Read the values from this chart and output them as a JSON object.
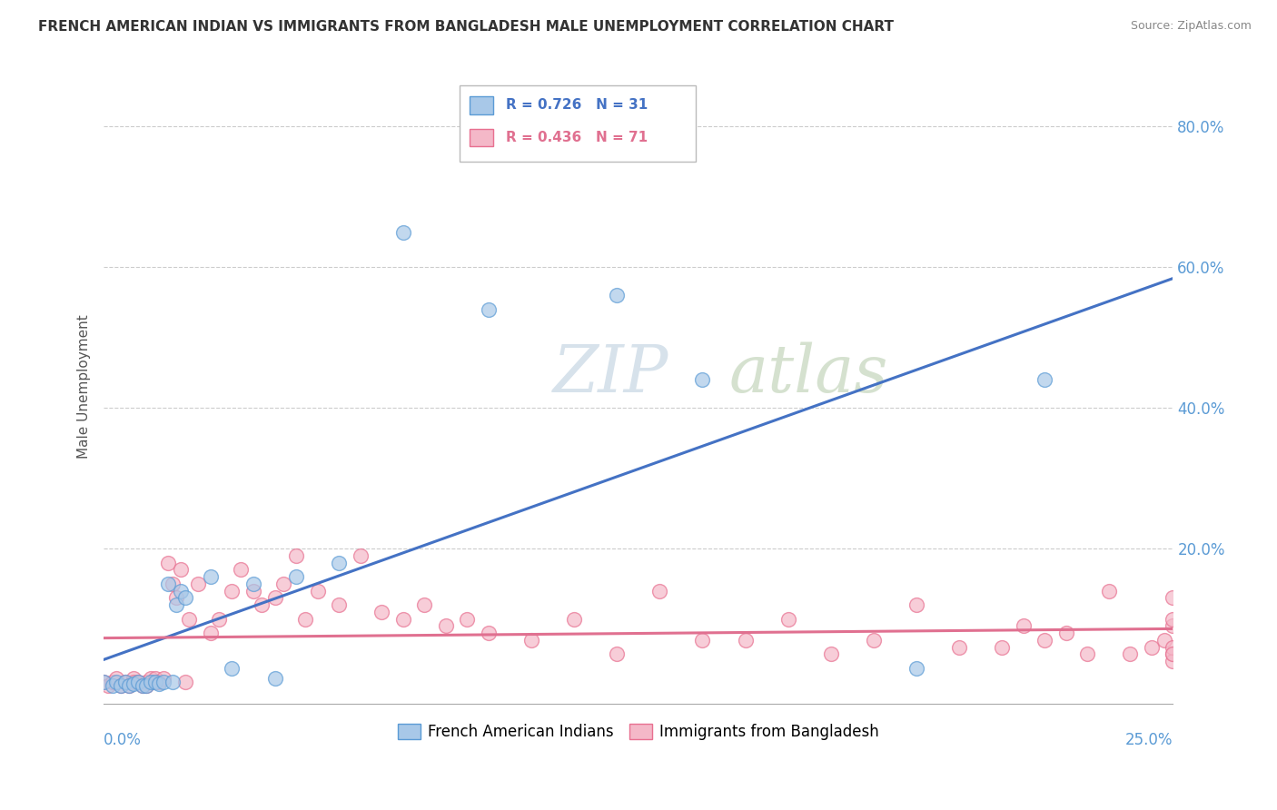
{
  "title": "FRENCH AMERICAN INDIAN VS IMMIGRANTS FROM BANGLADESH MALE UNEMPLOYMENT CORRELATION CHART",
  "source": "Source: ZipAtlas.com",
  "ylabel": "Male Unemployment",
  "y_ticks": [
    0.0,
    0.2,
    0.4,
    0.6,
    0.8
  ],
  "y_tick_labels": [
    "",
    "20.0%",
    "40.0%",
    "60.0%",
    "80.0%"
  ],
  "x_lim": [
    0.0,
    0.25
  ],
  "y_lim": [
    -0.02,
    0.88
  ],
  "blue_color": "#a8c8e8",
  "pink_color": "#f4b8c8",
  "blue_edge_color": "#5b9bd5",
  "pink_edge_color": "#e87090",
  "blue_line_color": "#4472c4",
  "pink_line_color": "#e07090",
  "blue_R": 0.726,
  "blue_N": 31,
  "pink_R": 0.436,
  "pink_N": 71,
  "blue_scatter_x": [
    0.0,
    0.002,
    0.003,
    0.004,
    0.005,
    0.006,
    0.007,
    0.008,
    0.009,
    0.01,
    0.011,
    0.012,
    0.013,
    0.014,
    0.015,
    0.016,
    0.017,
    0.018,
    0.019,
    0.025,
    0.03,
    0.035,
    0.04,
    0.045,
    0.055,
    0.07,
    0.09,
    0.12,
    0.14,
    0.19,
    0.22
  ],
  "blue_scatter_y": [
    0.01,
    0.005,
    0.01,
    0.005,
    0.01,
    0.005,
    0.008,
    0.01,
    0.005,
    0.005,
    0.01,
    0.01,
    0.008,
    0.01,
    0.15,
    0.01,
    0.12,
    0.14,
    0.13,
    0.16,
    0.03,
    0.15,
    0.015,
    0.16,
    0.18,
    0.65,
    0.54,
    0.56,
    0.44,
    0.03,
    0.44
  ],
  "pink_scatter_x": [
    0.0,
    0.001,
    0.002,
    0.003,
    0.004,
    0.005,
    0.006,
    0.007,
    0.007,
    0.008,
    0.009,
    0.01,
    0.01,
    0.011,
    0.012,
    0.012,
    0.013,
    0.014,
    0.015,
    0.016,
    0.017,
    0.018,
    0.019,
    0.02,
    0.022,
    0.025,
    0.027,
    0.03,
    0.032,
    0.035,
    0.037,
    0.04,
    0.042,
    0.045,
    0.047,
    0.05,
    0.055,
    0.06,
    0.065,
    0.07,
    0.075,
    0.08,
    0.085,
    0.09,
    0.1,
    0.11,
    0.12,
    0.13,
    0.14,
    0.15,
    0.16,
    0.17,
    0.18,
    0.19,
    0.2,
    0.21,
    0.215,
    0.22,
    0.225,
    0.23,
    0.235,
    0.24,
    0.245,
    0.248,
    0.25,
    0.25,
    0.25,
    0.25,
    0.25,
    0.25,
    0.25
  ],
  "pink_scatter_y": [
    0.01,
    0.005,
    0.01,
    0.015,
    0.005,
    0.01,
    0.005,
    0.015,
    0.01,
    0.01,
    0.005,
    0.01,
    0.005,
    0.015,
    0.01,
    0.015,
    0.01,
    0.015,
    0.18,
    0.15,
    0.13,
    0.17,
    0.01,
    0.1,
    0.15,
    0.08,
    0.1,
    0.14,
    0.17,
    0.14,
    0.12,
    0.13,
    0.15,
    0.19,
    0.1,
    0.14,
    0.12,
    0.19,
    0.11,
    0.1,
    0.12,
    0.09,
    0.1,
    0.08,
    0.07,
    0.1,
    0.05,
    0.14,
    0.07,
    0.07,
    0.1,
    0.05,
    0.07,
    0.12,
    0.06,
    0.06,
    0.09,
    0.07,
    0.08,
    0.05,
    0.14,
    0.05,
    0.06,
    0.07,
    0.09,
    0.1,
    0.05,
    0.04,
    0.06,
    0.13,
    0.05
  ]
}
